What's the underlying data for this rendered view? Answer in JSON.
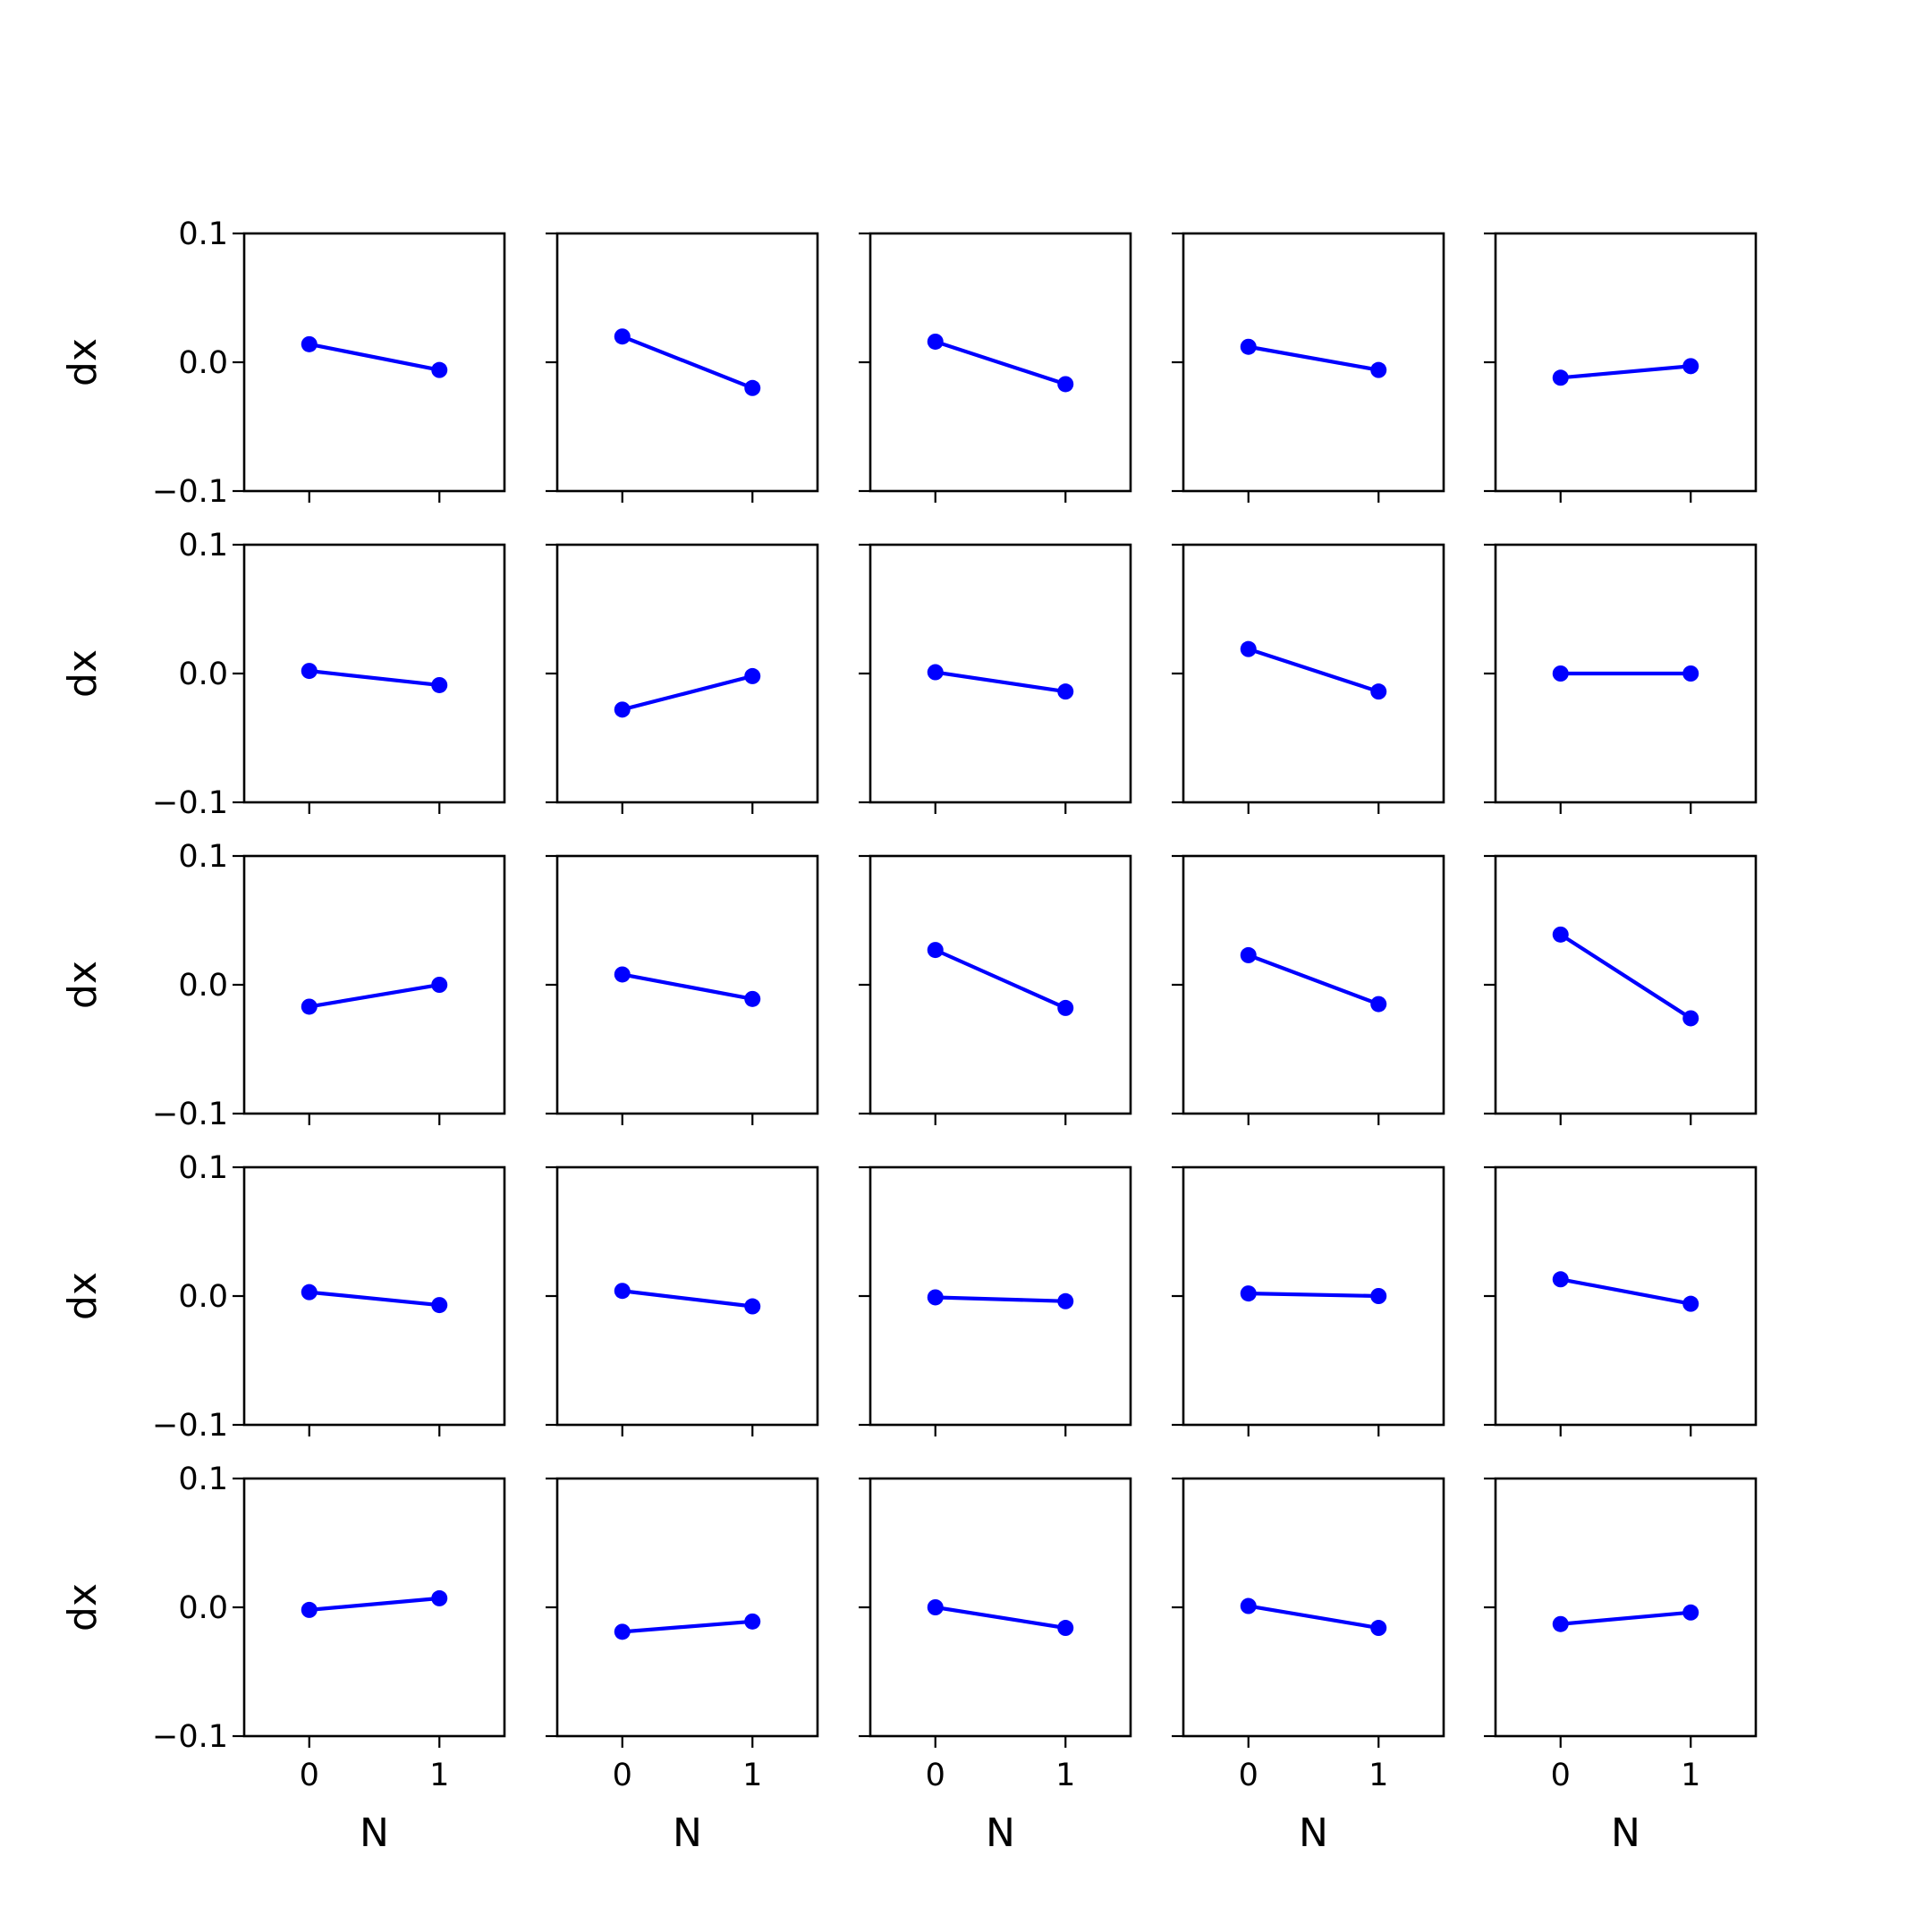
{
  "chart_data": {
    "type": "line",
    "layout": {
      "rows": 5,
      "cols": 5
    },
    "shared": {
      "x": [
        0,
        1
      ],
      "x_ticks": [
        0,
        1
      ],
      "x_tick_labels": [
        "0",
        "1"
      ],
      "xlim": [
        -0.5,
        1.5
      ],
      "y_ticks": [
        0.1,
        0.0,
        -0.1
      ],
      "y_tick_labels": [
        "0.1",
        "0.0",
        "−0.1"
      ],
      "ylim": [
        -0.1,
        0.1
      ],
      "xlabel": "N",
      "ylabel": "dx",
      "color": "#0000ff",
      "grid": false,
      "legend": "none"
    },
    "panels": [
      {
        "row": 0,
        "col": 0,
        "y": [
          0.014,
          -0.006
        ]
      },
      {
        "row": 0,
        "col": 1,
        "y": [
          0.02,
          -0.02
        ]
      },
      {
        "row": 0,
        "col": 2,
        "y": [
          0.016,
          -0.017
        ]
      },
      {
        "row": 0,
        "col": 3,
        "y": [
          0.012,
          -0.006
        ]
      },
      {
        "row": 0,
        "col": 4,
        "y": [
          -0.012,
          -0.003
        ]
      },
      {
        "row": 1,
        "col": 0,
        "y": [
          0.002,
          -0.009
        ]
      },
      {
        "row": 1,
        "col": 1,
        "y": [
          -0.028,
          -0.002
        ]
      },
      {
        "row": 1,
        "col": 2,
        "y": [
          0.001,
          -0.014
        ]
      },
      {
        "row": 1,
        "col": 3,
        "y": [
          0.019,
          -0.014
        ]
      },
      {
        "row": 1,
        "col": 4,
        "y": [
          0.0,
          0.0
        ]
      },
      {
        "row": 2,
        "col": 0,
        "y": [
          -0.017,
          0.0
        ]
      },
      {
        "row": 2,
        "col": 1,
        "y": [
          0.008,
          -0.011
        ]
      },
      {
        "row": 2,
        "col": 2,
        "y": [
          0.027,
          -0.018
        ]
      },
      {
        "row": 2,
        "col": 3,
        "y": [
          0.023,
          -0.015
        ]
      },
      {
        "row": 2,
        "col": 4,
        "y": [
          0.039,
          -0.026
        ]
      },
      {
        "row": 3,
        "col": 0,
        "y": [
          0.003,
          -0.007
        ]
      },
      {
        "row": 3,
        "col": 1,
        "y": [
          0.004,
          -0.008
        ]
      },
      {
        "row": 3,
        "col": 2,
        "y": [
          -0.001,
          -0.004
        ]
      },
      {
        "row": 3,
        "col": 3,
        "y": [
          0.002,
          0.0
        ]
      },
      {
        "row": 3,
        "col": 4,
        "y": [
          0.013,
          -0.006
        ]
      },
      {
        "row": 4,
        "col": 0,
        "y": [
          -0.002,
          0.007
        ]
      },
      {
        "row": 4,
        "col": 1,
        "y": [
          -0.019,
          -0.011
        ]
      },
      {
        "row": 4,
        "col": 2,
        "y": [
          0.0,
          -0.016
        ]
      },
      {
        "row": 4,
        "col": 3,
        "y": [
          0.001,
          -0.016
        ]
      },
      {
        "row": 4,
        "col": 4,
        "y": [
          -0.013,
          -0.004
        ]
      }
    ]
  }
}
